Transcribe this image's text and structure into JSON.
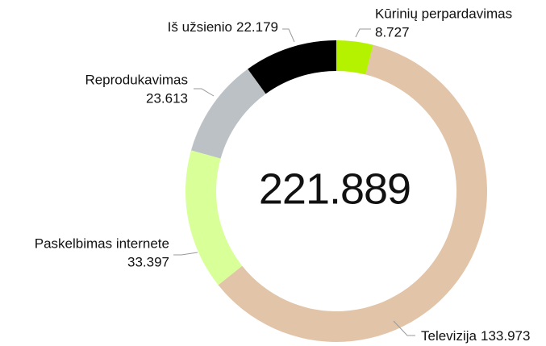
{
  "chart_data": {
    "type": "donut",
    "total": 221.889,
    "series": [
      {
        "name": "Kūrinių perpardavimas",
        "color": "#b5f200",
        "value": 8.727
      },
      {
        "name": "Televizija",
        "color": "#e2c4a8",
        "value": 133.973
      },
      {
        "name": "Paskelbimas internete",
        "color": "#d9ff99",
        "value": 33.397
      },
      {
        "name": "Reprodukavimas",
        "color": "#bcc1c5",
        "value": 23.613
      },
      {
        "name": "Iš užsienio",
        "color": "#000000",
        "value": 22.179
      }
    ]
  }
}
